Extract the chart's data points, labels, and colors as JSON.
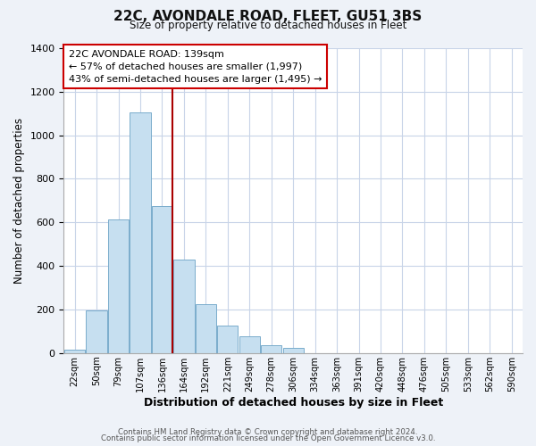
{
  "title": "22C, AVONDALE ROAD, FLEET, GU51 3BS",
  "subtitle": "Size of property relative to detached houses in Fleet",
  "xlabel": "Distribution of detached houses by size in Fleet",
  "ylabel": "Number of detached properties",
  "bar_labels": [
    "22sqm",
    "50sqm",
    "79sqm",
    "107sqm",
    "136sqm",
    "164sqm",
    "192sqm",
    "221sqm",
    "249sqm",
    "278sqm",
    "306sqm",
    "334sqm",
    "363sqm",
    "391sqm",
    "420sqm",
    "448sqm",
    "476sqm",
    "505sqm",
    "533sqm",
    "562sqm",
    "590sqm"
  ],
  "bar_heights": [
    15,
    195,
    615,
    1105,
    675,
    430,
    225,
    125,
    78,
    35,
    25,
    0,
    0,
    0,
    0,
    0,
    0,
    0,
    0,
    0,
    0
  ],
  "bar_color": "#c6dff0",
  "bar_edge_color": "#7aaccc",
  "property_line_color": "#aa0000",
  "annotation_line1": "22C AVONDALE ROAD: 139sqm",
  "annotation_line2": "← 57% of detached houses are smaller (1,997)",
  "annotation_line3": "43% of semi-detached houses are larger (1,495) →",
  "ylim": [
    0,
    1400
  ],
  "yticks": [
    0,
    200,
    400,
    600,
    800,
    1000,
    1200,
    1400
  ],
  "footer_line1": "Contains HM Land Registry data © Crown copyright and database right 2024.",
  "footer_line2": "Contains public sector information licensed under the Open Government Licence v3.0.",
  "bg_color": "#eef2f8",
  "plot_bg_color": "#ffffff",
  "grid_color": "#c8d4e8"
}
